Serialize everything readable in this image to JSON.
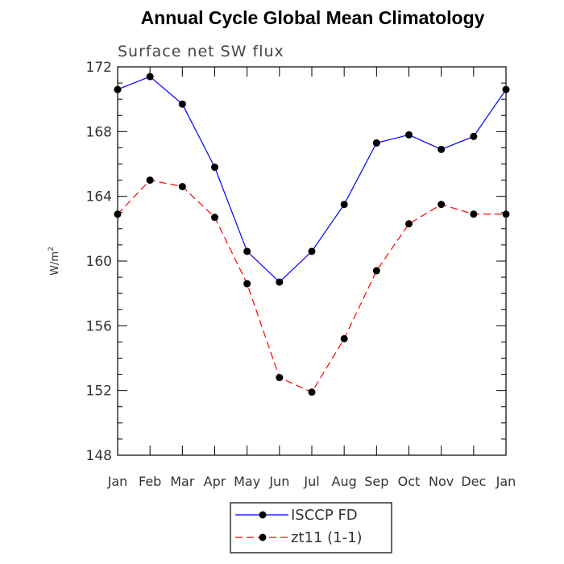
{
  "chart_data": {
    "type": "line",
    "title": "Annual Cycle Global Mean Climatology",
    "subtitle": "Surface net SW flux",
    "ylabel": "W/m",
    "ylabel_sup": "2",
    "xlabel": "",
    "categories": [
      "Jan",
      "Feb",
      "Mar",
      "Apr",
      "May",
      "Jun",
      "Jul",
      "Aug",
      "Sep",
      "Oct",
      "Nov",
      "Dec",
      "Jan"
    ],
    "ylim": [
      148,
      172
    ],
    "yticks": [
      148,
      152,
      156,
      160,
      164,
      168,
      172
    ],
    "yticks_minor_step": 1,
    "grid": false,
    "legend_position": "bottom",
    "series": [
      {
        "name": "ISCCP FD",
        "color": "#0000ff",
        "dash": "solid",
        "marker_color": "#000000",
        "values": [
          170.6,
          171.4,
          169.7,
          165.8,
          160.6,
          158.7,
          160.6,
          163.5,
          167.3,
          167.8,
          166.9,
          167.7,
          170.6
        ]
      },
      {
        "name": "zt11 (1-1)",
        "color": "#ff0000",
        "dash": "dashed",
        "marker_color": "#000000",
        "values": [
          162.9,
          165.0,
          164.6,
          162.7,
          158.6,
          152.8,
          151.9,
          155.2,
          159.4,
          162.3,
          163.5,
          162.9,
          162.9
        ]
      }
    ]
  }
}
